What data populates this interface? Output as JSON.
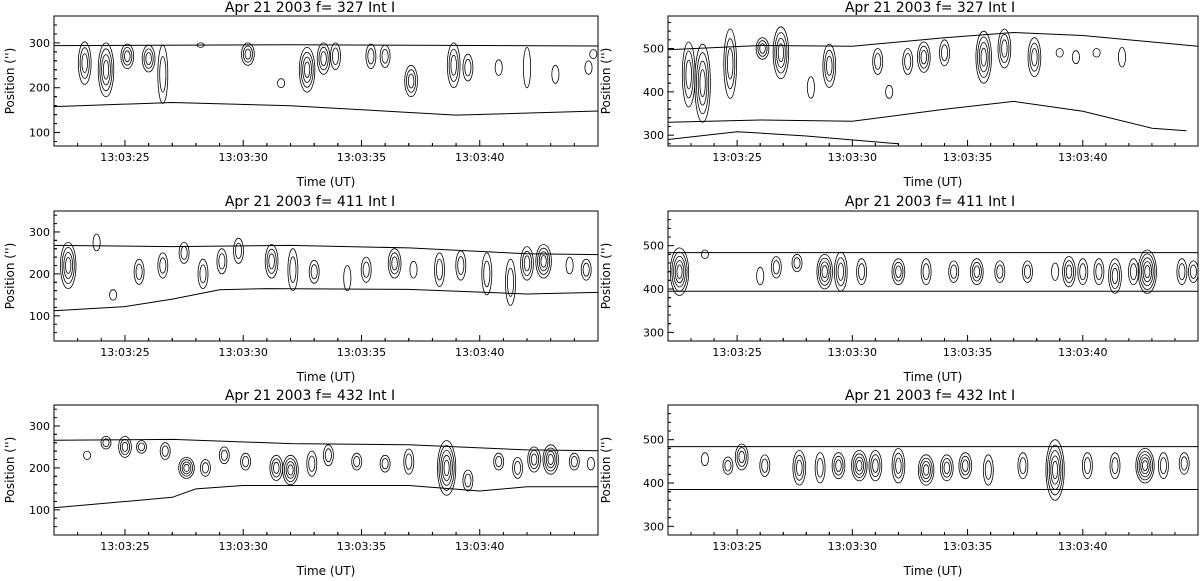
{
  "chart_data": [
    {
      "type": "contour",
      "title": "Apr 21 2003 f=  327 Int I",
      "xlabel": "Time (UT)",
      "ylabel": "Position ('')",
      "xlim": [
        "13:03:22",
        "13:03:45"
      ],
      "ylim": [
        70,
        360
      ],
      "xticks": [
        "13:03:25",
        "13:03:30",
        "13:03:35",
        "13:03:40"
      ],
      "yticks": [
        100,
        200,
        300
      ],
      "upper_boundary": [
        [
          0,
          294
        ],
        [
          10,
          296
        ],
        [
          23,
          293
        ]
      ],
      "lower_boundary": [
        [
          0,
          158
        ],
        [
          5,
          167
        ],
        [
          10,
          160
        ],
        [
          17,
          139
        ],
        [
          23,
          148
        ]
      ],
      "bursts": [
        {
          "t": 1.3,
          "y": 255,
          "h": 95,
          "levels": 3
        },
        {
          "t": 2.2,
          "y": 240,
          "h": 120,
          "levels": 4
        },
        {
          "t": 3.1,
          "y": 270,
          "h": 55,
          "levels": 3
        },
        {
          "t": 4.0,
          "y": 265,
          "h": 60,
          "levels": 3
        },
        {
          "t": 4.6,
          "y": 230,
          "h": 130,
          "levels": 2
        },
        {
          "t": 6.2,
          "y": 295,
          "h": 10,
          "levels": 1
        },
        {
          "t": 8.2,
          "y": 275,
          "h": 50,
          "levels": 3
        },
        {
          "t": 9.6,
          "y": 210,
          "h": 20,
          "levels": 1
        },
        {
          "t": 10.7,
          "y": 240,
          "h": 100,
          "levels": 4
        },
        {
          "t": 11.4,
          "y": 265,
          "h": 70,
          "levels": 3
        },
        {
          "t": 11.9,
          "y": 270,
          "h": 60,
          "levels": 2
        },
        {
          "t": 13.4,
          "y": 270,
          "h": 55,
          "levels": 2
        },
        {
          "t": 14.0,
          "y": 270,
          "h": 50,
          "levels": 2
        },
        {
          "t": 15.1,
          "y": 215,
          "h": 70,
          "levels": 3
        },
        {
          "t": 16.9,
          "y": 250,
          "h": 100,
          "levels": 3
        },
        {
          "t": 17.5,
          "y": 245,
          "h": 60,
          "levels": 2
        },
        {
          "t": 18.8,
          "y": 245,
          "h": 35,
          "levels": 1
        },
        {
          "t": 20.0,
          "y": 245,
          "h": 90,
          "levels": 1
        },
        {
          "t": 21.2,
          "y": 230,
          "h": 40,
          "levels": 1
        },
        {
          "t": 22.6,
          "y": 245,
          "h": 30,
          "levels": 1
        },
        {
          "t": 22.8,
          "y": 275,
          "h": 20,
          "levels": 1
        }
      ]
    },
    {
      "type": "contour",
      "title": "Apr 21 2003 f=  327 Int I",
      "xlabel": "Time (UT)",
      "ylabel": "Position ('')",
      "xlim": [
        "13:03:22",
        "13:03:45"
      ],
      "ylim": [
        275,
        575
      ],
      "xticks": [
        "13:03:25",
        "13:03:30",
        "13:03:35",
        "13:03:40"
      ],
      "yticks": [
        300,
        400,
        500
      ],
      "upper_boundary": [
        [
          0,
          497
        ],
        [
          4,
          507
        ],
        [
          8,
          505
        ],
        [
          12,
          525
        ],
        [
          15,
          537
        ],
        [
          18,
          530
        ],
        [
          23,
          505
        ]
      ],
      "lower_boundary": [
        [
          0,
          330
        ],
        [
          4,
          335
        ],
        [
          8,
          332
        ],
        [
          12,
          360
        ],
        [
          15,
          378
        ],
        [
          18,
          355
        ],
        [
          21,
          316
        ],
        [
          22.5,
          310
        ]
      ],
      "lowest_boundary": [
        [
          0,
          290
        ],
        [
          3,
          308
        ],
        [
          6,
          298
        ],
        [
          10,
          280
        ]
      ],
      "bursts": [
        {
          "t": 0.9,
          "y": 440,
          "h": 150,
          "levels": 3
        },
        {
          "t": 1.5,
          "y": 420,
          "h": 180,
          "levels": 4
        },
        {
          "t": 2.7,
          "y": 465,
          "h": 160,
          "levels": 3
        },
        {
          "t": 4.1,
          "y": 500,
          "h": 50,
          "levels": 3
        },
        {
          "t": 4.9,
          "y": 490,
          "h": 120,
          "levels": 4
        },
        {
          "t": 6.2,
          "y": 410,
          "h": 50,
          "levels": 1
        },
        {
          "t": 7.0,
          "y": 460,
          "h": 100,
          "levels": 3
        },
        {
          "t": 9.1,
          "y": 470,
          "h": 60,
          "levels": 2
        },
        {
          "t": 9.6,
          "y": 400,
          "h": 30,
          "levels": 1
        },
        {
          "t": 10.4,
          "y": 470,
          "h": 60,
          "levels": 2
        },
        {
          "t": 11.1,
          "y": 480,
          "h": 70,
          "levels": 3
        },
        {
          "t": 12.0,
          "y": 490,
          "h": 60,
          "levels": 2
        },
        {
          "t": 13.7,
          "y": 480,
          "h": 120,
          "levels": 4
        },
        {
          "t": 14.6,
          "y": 500,
          "h": 90,
          "levels": 3
        },
        {
          "t": 15.9,
          "y": 480,
          "h": 90,
          "levels": 3
        },
        {
          "t": 17.0,
          "y": 490,
          "h": 20,
          "levels": 1
        },
        {
          "t": 17.7,
          "y": 480,
          "h": 30,
          "levels": 1
        },
        {
          "t": 18.6,
          "y": 490,
          "h": 20,
          "levels": 1
        },
        {
          "t": 19.7,
          "y": 480,
          "h": 45,
          "levels": 1
        }
      ]
    },
    {
      "type": "contour",
      "title": "Apr 21 2003 f=  411 Int I",
      "xlabel": "Time (UT)",
      "ylabel": "Position ('')",
      "xlim": [
        "13:03:22",
        "13:03:45"
      ],
      "ylim": [
        40,
        350
      ],
      "xticks": [
        "13:03:25",
        "13:03:30",
        "13:03:35",
        "13:03:40"
      ],
      "yticks": [
        100,
        200,
        300
      ],
      "upper_boundary": [
        [
          0,
          268
        ],
        [
          5,
          265
        ],
        [
          10,
          268
        ],
        [
          15,
          262
        ],
        [
          20,
          248
        ],
        [
          23,
          246
        ]
      ],
      "lower_boundary": [
        [
          0,
          112
        ],
        [
          3,
          122
        ],
        [
          5,
          140
        ],
        [
          7,
          162
        ],
        [
          9,
          165
        ],
        [
          15,
          163
        ],
        [
          20,
          152
        ],
        [
          23,
          156
        ]
      ],
      "bursts": [
        {
          "t": 0.6,
          "y": 220,
          "h": 110,
          "levels": 4
        },
        {
          "t": 1.8,
          "y": 275,
          "h": 40,
          "levels": 1
        },
        {
          "t": 2.5,
          "y": 150,
          "h": 25,
          "levels": 1
        },
        {
          "t": 3.6,
          "y": 205,
          "h": 60,
          "levels": 2
        },
        {
          "t": 4.6,
          "y": 220,
          "h": 60,
          "levels": 2
        },
        {
          "t": 5.5,
          "y": 250,
          "h": 50,
          "levels": 2
        },
        {
          "t": 6.3,
          "y": 200,
          "h": 70,
          "levels": 2
        },
        {
          "t": 7.1,
          "y": 230,
          "h": 60,
          "levels": 2
        },
        {
          "t": 7.8,
          "y": 255,
          "h": 60,
          "levels": 2
        },
        {
          "t": 9.2,
          "y": 230,
          "h": 80,
          "levels": 3
        },
        {
          "t": 10.1,
          "y": 210,
          "h": 100,
          "levels": 2
        },
        {
          "t": 11.0,
          "y": 205,
          "h": 55,
          "levels": 2
        },
        {
          "t": 12.4,
          "y": 190,
          "h": 60,
          "levels": 1
        },
        {
          "t": 13.2,
          "y": 210,
          "h": 60,
          "levels": 2
        },
        {
          "t": 14.4,
          "y": 225,
          "h": 70,
          "levels": 3
        },
        {
          "t": 15.2,
          "y": 210,
          "h": 40,
          "levels": 1
        },
        {
          "t": 16.3,
          "y": 210,
          "h": 80,
          "levels": 2
        },
        {
          "t": 17.2,
          "y": 220,
          "h": 70,
          "levels": 2
        },
        {
          "t": 18.3,
          "y": 200,
          "h": 100,
          "levels": 2
        },
        {
          "t": 19.3,
          "y": 180,
          "h": 110,
          "levels": 2
        },
        {
          "t": 20.0,
          "y": 225,
          "h": 80,
          "levels": 3
        },
        {
          "t": 20.7,
          "y": 230,
          "h": 80,
          "levels": 4
        },
        {
          "t": 21.8,
          "y": 220,
          "h": 40,
          "levels": 1
        },
        {
          "t": 22.5,
          "y": 210,
          "h": 50,
          "levels": 2
        }
      ]
    },
    {
      "type": "contour",
      "title": "Apr 21 2003 f=  411 Int I",
      "xlabel": "Time (UT)",
      "ylabel": "Position ('')",
      "xlim": [
        "13:03:22",
        "13:03:45"
      ],
      "ylim": [
        280,
        580
      ],
      "xticks": [
        "13:03:25",
        "13:03:30",
        "13:03:35",
        "13:03:40"
      ],
      "yticks": [
        300,
        400,
        500
      ],
      "upper_boundary": [
        [
          0,
          484
        ],
        [
          23,
          484
        ]
      ],
      "lower_boundary": [
        [
          0,
          395
        ],
        [
          23,
          395
        ]
      ],
      "bursts": [
        {
          "t": 0.5,
          "y": 440,
          "h": 110,
          "levels": 5
        },
        {
          "t": 1.6,
          "y": 480,
          "h": 20,
          "levels": 1
        },
        {
          "t": 4.0,
          "y": 430,
          "h": 40,
          "levels": 1
        },
        {
          "t": 4.7,
          "y": 450,
          "h": 50,
          "levels": 2
        },
        {
          "t": 5.6,
          "y": 460,
          "h": 40,
          "levels": 2
        },
        {
          "t": 6.8,
          "y": 440,
          "h": 80,
          "levels": 4
        },
        {
          "t": 7.5,
          "y": 440,
          "h": 90,
          "levels": 3
        },
        {
          "t": 8.4,
          "y": 440,
          "h": 60,
          "levels": 2
        },
        {
          "t": 10.0,
          "y": 440,
          "h": 60,
          "levels": 3
        },
        {
          "t": 11.2,
          "y": 440,
          "h": 60,
          "levels": 2
        },
        {
          "t": 12.4,
          "y": 440,
          "h": 50,
          "levels": 2
        },
        {
          "t": 13.4,
          "y": 440,
          "h": 60,
          "levels": 3
        },
        {
          "t": 14.4,
          "y": 440,
          "h": 50,
          "levels": 2
        },
        {
          "t": 15.6,
          "y": 440,
          "h": 50,
          "levels": 2
        },
        {
          "t": 16.8,
          "y": 440,
          "h": 40,
          "levels": 1
        },
        {
          "t": 17.4,
          "y": 440,
          "h": 70,
          "levels": 3
        },
        {
          "t": 18.0,
          "y": 440,
          "h": 60,
          "levels": 2
        },
        {
          "t": 18.7,
          "y": 440,
          "h": 60,
          "levels": 2
        },
        {
          "t": 19.4,
          "y": 430,
          "h": 80,
          "levels": 3
        },
        {
          "t": 20.2,
          "y": 440,
          "h": 60,
          "levels": 2
        },
        {
          "t": 20.8,
          "y": 440,
          "h": 100,
          "levels": 5
        },
        {
          "t": 22.3,
          "y": 440,
          "h": 60,
          "levels": 2
        },
        {
          "t": 22.8,
          "y": 440,
          "h": 50,
          "levels": 2
        }
      ]
    },
    {
      "type": "contour",
      "title": "Apr 21 2003 f=  432 Int I",
      "xlabel": "Time (UT)",
      "ylabel": "Position ('')",
      "xlim": [
        "13:03:22",
        "13:03:45"
      ],
      "ylim": [
        40,
        350
      ],
      "xticks": [
        "13:03:25",
        "13:03:30",
        "13:03:35",
        "13:03:40"
      ],
      "yticks": [
        100,
        200,
        300
      ],
      "upper_boundary": [
        [
          0,
          266
        ],
        [
          5,
          268
        ],
        [
          10,
          258
        ],
        [
          15,
          255
        ],
        [
          20,
          243
        ],
        [
          23,
          241
        ]
      ],
      "lower_boundary": [
        [
          0,
          105
        ],
        [
          3,
          120
        ],
        [
          5,
          130
        ],
        [
          6,
          150
        ],
        [
          8,
          158
        ],
        [
          15,
          158
        ],
        [
          18,
          145
        ],
        [
          20,
          155
        ],
        [
          23,
          155
        ]
      ],
      "bursts": [
        {
          "t": 1.4,
          "y": 230,
          "h": 20,
          "levels": 1
        },
        {
          "t": 2.2,
          "y": 260,
          "h": 30,
          "levels": 2
        },
        {
          "t": 3.0,
          "y": 250,
          "h": 50,
          "levels": 3
        },
        {
          "t": 3.7,
          "y": 250,
          "h": 30,
          "levels": 2
        },
        {
          "t": 4.7,
          "y": 240,
          "h": 40,
          "levels": 2
        },
        {
          "t": 5.6,
          "y": 200,
          "h": 50,
          "levels": 4
        },
        {
          "t": 6.4,
          "y": 200,
          "h": 40,
          "levels": 2
        },
        {
          "t": 7.2,
          "y": 230,
          "h": 40,
          "levels": 2
        },
        {
          "t": 8.1,
          "y": 215,
          "h": 40,
          "levels": 2
        },
        {
          "t": 9.4,
          "y": 200,
          "h": 60,
          "levels": 3
        },
        {
          "t": 10.0,
          "y": 195,
          "h": 70,
          "levels": 4
        },
        {
          "t": 10.9,
          "y": 210,
          "h": 60,
          "levels": 2
        },
        {
          "t": 11.6,
          "y": 230,
          "h": 50,
          "levels": 2
        },
        {
          "t": 12.8,
          "y": 215,
          "h": 40,
          "levels": 2
        },
        {
          "t": 14.0,
          "y": 210,
          "h": 40,
          "levels": 2
        },
        {
          "t": 15.0,
          "y": 215,
          "h": 60,
          "levels": 2
        },
        {
          "t": 16.6,
          "y": 200,
          "h": 130,
          "levels": 5
        },
        {
          "t": 17.5,
          "y": 170,
          "h": 50,
          "levels": 2
        },
        {
          "t": 18.8,
          "y": 215,
          "h": 40,
          "levels": 2
        },
        {
          "t": 19.6,
          "y": 200,
          "h": 50,
          "levels": 2
        },
        {
          "t": 20.3,
          "y": 220,
          "h": 60,
          "levels": 3
        },
        {
          "t": 21.0,
          "y": 220,
          "h": 70,
          "levels": 4
        },
        {
          "t": 22.0,
          "y": 215,
          "h": 40,
          "levels": 2
        },
        {
          "t": 22.7,
          "y": 210,
          "h": 30,
          "levels": 1
        }
      ]
    },
    {
      "type": "contour",
      "title": "Apr 21 2003 f=  432 Int I",
      "xlabel": "Time (UT)",
      "ylabel": "Position ('')",
      "xlim": [
        "13:03:22",
        "13:03:45"
      ],
      "ylim": [
        280,
        580
      ],
      "xticks": [
        "13:03:25",
        "13:03:30",
        "13:03:35",
        "13:03:40"
      ],
      "yticks": [
        300,
        400,
        500
      ],
      "upper_boundary": [
        [
          0,
          484
        ],
        [
          23,
          484
        ]
      ],
      "lower_boundary": [
        [
          0,
          385
        ],
        [
          23,
          385
        ]
      ],
      "bursts": [
        {
          "t": 1.6,
          "y": 455,
          "h": 30,
          "levels": 1
        },
        {
          "t": 2.6,
          "y": 440,
          "h": 40,
          "levels": 2
        },
        {
          "t": 3.2,
          "y": 460,
          "h": 60,
          "levels": 3
        },
        {
          "t": 4.2,
          "y": 440,
          "h": 50,
          "levels": 2
        },
        {
          "t": 5.7,
          "y": 435,
          "h": 80,
          "levels": 3
        },
        {
          "t": 6.6,
          "y": 435,
          "h": 70,
          "levels": 2
        },
        {
          "t": 7.4,
          "y": 440,
          "h": 60,
          "levels": 3
        },
        {
          "t": 8.3,
          "y": 440,
          "h": 70,
          "levels": 4
        },
        {
          "t": 9.0,
          "y": 440,
          "h": 70,
          "levels": 3
        },
        {
          "t": 10.0,
          "y": 440,
          "h": 80,
          "levels": 3
        },
        {
          "t": 11.2,
          "y": 430,
          "h": 70,
          "levels": 4
        },
        {
          "t": 12.1,
          "y": 435,
          "h": 60,
          "levels": 3
        },
        {
          "t": 12.9,
          "y": 440,
          "h": 60,
          "levels": 3
        },
        {
          "t": 13.9,
          "y": 430,
          "h": 70,
          "levels": 2
        },
        {
          "t": 15.4,
          "y": 440,
          "h": 60,
          "levels": 2
        },
        {
          "t": 16.8,
          "y": 430,
          "h": 140,
          "levels": 5
        },
        {
          "t": 18.2,
          "y": 440,
          "h": 60,
          "levels": 2
        },
        {
          "t": 19.4,
          "y": 440,
          "h": 60,
          "levels": 2
        },
        {
          "t": 20.7,
          "y": 440,
          "h": 80,
          "levels": 5
        },
        {
          "t": 21.5,
          "y": 440,
          "h": 60,
          "levels": 2
        },
        {
          "t": 22.4,
          "y": 445,
          "h": 50,
          "levels": 2
        }
      ]
    }
  ]
}
